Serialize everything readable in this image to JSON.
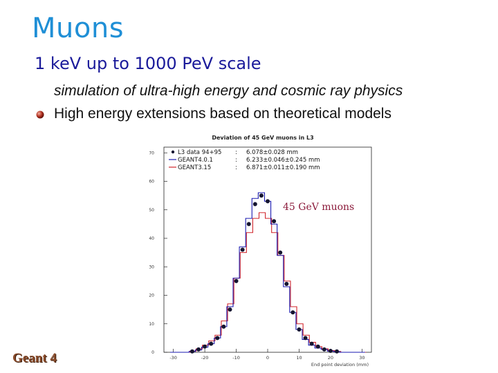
{
  "slide": {
    "title": "Muons",
    "subtitle": "1 keV up to 1000 PeV scale",
    "lines": [
      "simulation of ultra-high energy and cosmic ray physics",
      "High energy extensions based on theoretical models"
    ],
    "logo_text": "Geant 4"
  },
  "colors": {
    "title": "#1f8fd6",
    "subtitle": "#1a1a9a",
    "data": "#151530",
    "geant4": "#1a1ab0",
    "geant3": "#d0242a",
    "annotation": "#8b1a3a"
  },
  "chart_data": {
    "type": "line",
    "title": "Deviation of 45 GeV muons in L3",
    "xlabel": "End point deviation (mm)",
    "ylabel": "",
    "xlim": [
      -33,
      33
    ],
    "ylim": [
      0,
      72
    ],
    "xticks": [
      -30,
      -20,
      -10,
      0,
      10,
      20,
      30
    ],
    "yticks": [
      0,
      10,
      20,
      30,
      40,
      50,
      60,
      70
    ],
    "annotation": "45 GeV muons",
    "legend": [
      {
        "name": "L3 data 94+95",
        "sep": ":",
        "value": "6.078±0.028 mm",
        "style": "points"
      },
      {
        "name": "GEANT4.0.1",
        "sep": ":",
        "value": "6.233±0.046±0.245 mm",
        "style": "line"
      },
      {
        "name": "GEANT3.15",
        "sep": ":",
        "value": "6.871±0.011±0.190 mm",
        "style": "line"
      }
    ],
    "x": [
      -30,
      -28,
      -26,
      -24,
      -22,
      -20,
      -18,
      -16,
      -14,
      -12,
      -10,
      -8,
      -6,
      -4,
      -2,
      0,
      2,
      4,
      6,
      8,
      10,
      12,
      14,
      16,
      18,
      20,
      22,
      24,
      26,
      28,
      30
    ],
    "series": [
      {
        "name": "L3 data 94+95",
        "values": [
          0,
          0,
          0,
          0.3,
          1,
          2,
          3,
          5,
          9,
          15,
          25,
          36,
          45,
          52,
          55,
          53,
          46,
          35,
          24,
          14,
          8,
          5,
          3,
          2,
          1,
          0.5,
          0.3,
          0,
          0,
          0,
          0
        ]
      },
      {
        "name": "GEANT4.0.1",
        "values": [
          0,
          0,
          0,
          0.3,
          0.8,
          1.8,
          3,
          5,
          9,
          16,
          26,
          37,
          47,
          54,
          56,
          53,
          45,
          34,
          23,
          14,
          8,
          4.5,
          2.5,
          1.5,
          1,
          0.4,
          0.2,
          0,
          0,
          0,
          0
        ]
      },
      {
        "name": "GEANT3.15",
        "values": [
          0,
          0,
          0,
          0.4,
          1.2,
          2.5,
          4,
          6,
          11,
          17,
          26,
          35,
          42,
          47,
          49,
          47,
          42,
          34,
          25,
          16,
          10,
          6,
          3.5,
          2,
          1.2,
          0.6,
          0.3,
          0,
          0,
          0,
          0
        ]
      }
    ]
  }
}
